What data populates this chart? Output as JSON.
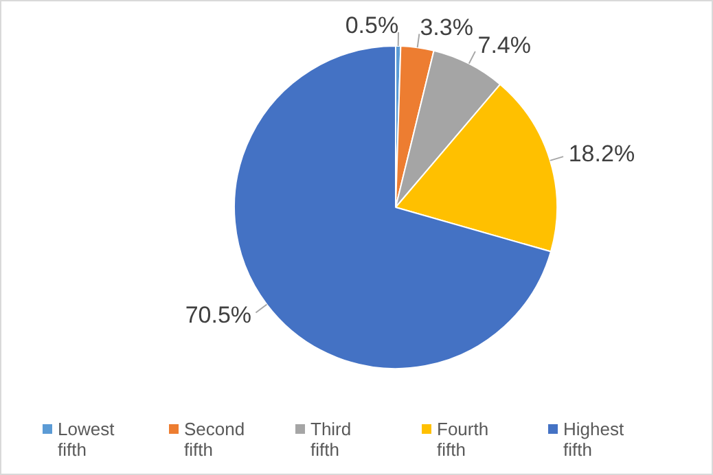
{
  "chart_data": {
    "type": "pie",
    "categories": [
      "Lowest fifth",
      "Second fifth",
      "Third fifth",
      "Fourth fifth",
      "Highest fifth"
    ],
    "values": [
      0.5,
      3.3,
      7.4,
      18.2,
      70.5
    ],
    "value_labels": [
      "0.5%",
      "3.3%",
      "7.4%",
      "18.2%",
      "70.5%"
    ],
    "colors": [
      "#5b9bd5",
      "#ed7d31",
      "#a5a5a5",
      "#ffc000",
      "#4472c4"
    ],
    "legend": "bottom"
  }
}
